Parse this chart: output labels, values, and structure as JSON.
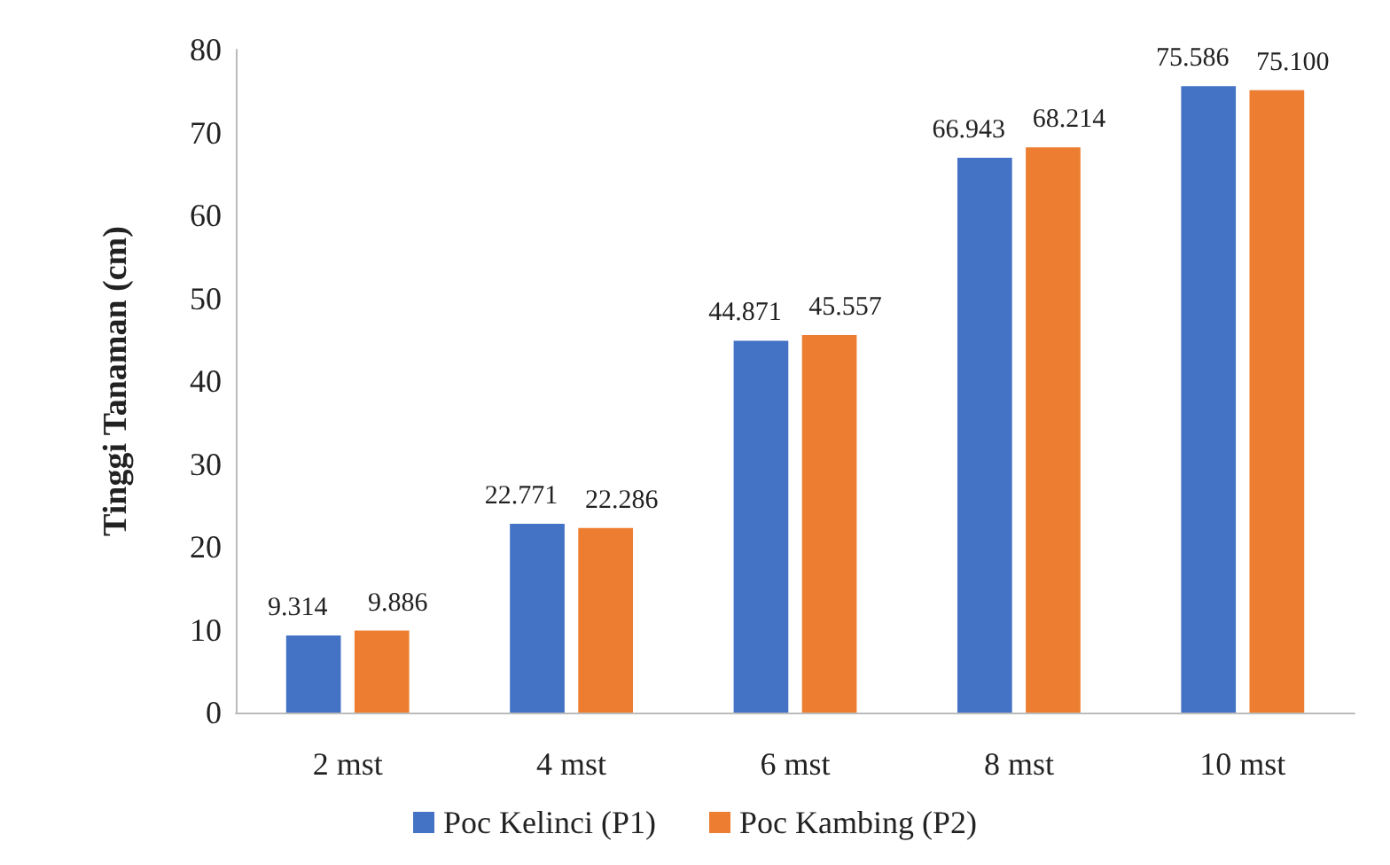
{
  "chart_data": {
    "type": "bar",
    "ylabel": "Tinggi Tanaman (cm)",
    "categories": [
      "2 mst",
      "4 mst",
      "6 mst",
      "8 mst",
      "10 mst"
    ],
    "series": [
      {
        "name": "Poc Kelinci (P1)",
        "color": "#4472c4",
        "values": [
          9.314,
          22.771,
          44.871,
          66.943,
          75.586
        ],
        "value_labels": [
          "9.314",
          "22.771",
          "44.871",
          "66.943",
          "75.586"
        ]
      },
      {
        "name": "Poc Kambing (P2)",
        "color": "#ed7d31",
        "values": [
          9.886,
          22.286,
          45.557,
          68.214,
          75.1
        ],
        "value_labels": [
          "9.886",
          "22.286",
          "45.557",
          "68.214",
          "75.100"
        ]
      }
    ],
    "ylim": [
      0,
      80
    ],
    "yticks": [
      0,
      10,
      20,
      30,
      40,
      50,
      60,
      70,
      80
    ],
    "grid": false,
    "legend": "bottom"
  }
}
